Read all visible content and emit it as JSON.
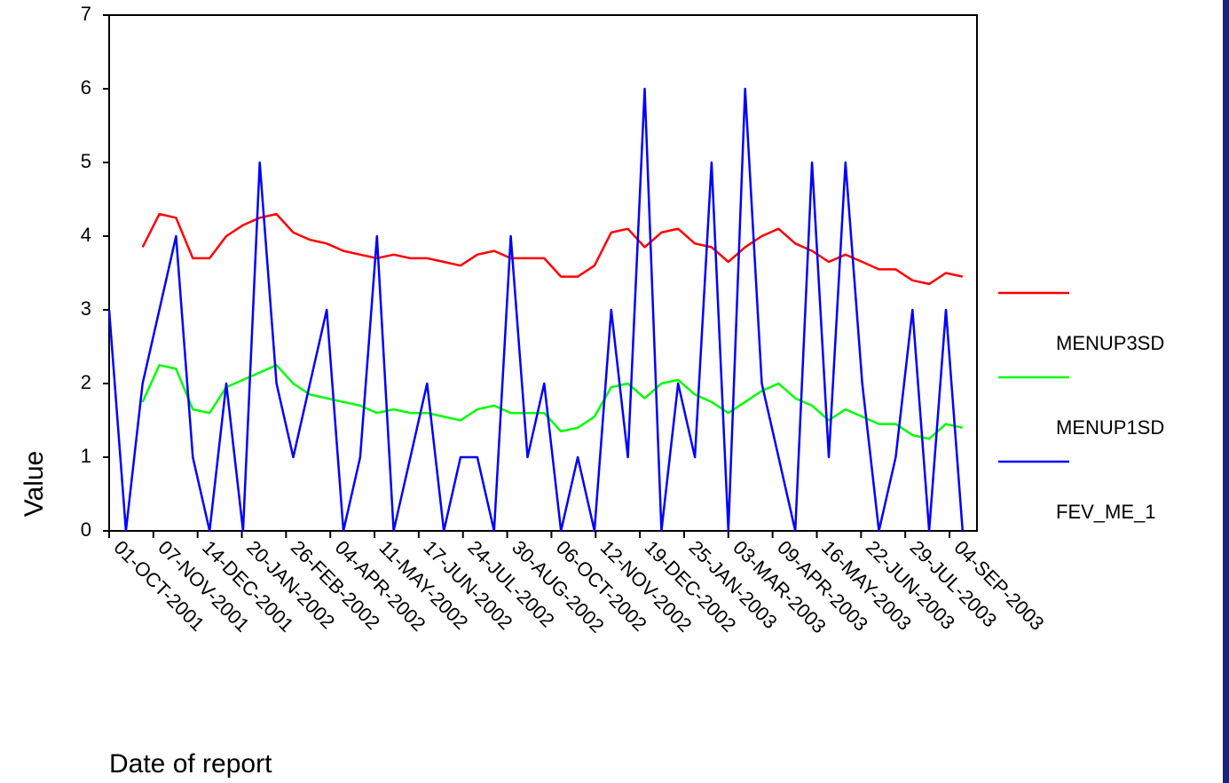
{
  "chart_data": {
    "type": "line",
    "x_label": "Date of report",
    "y_label": "Value",
    "x": [
      "01-OCT-2001",
      "15-OCT-2001",
      "29-OCT-2001",
      "12-NOV-2001",
      "26-NOV-2001",
      "10-DEC-2001",
      "24-DEC-2001",
      "07-JAN-2002",
      "21-JAN-2002",
      "04-FEB-2002",
      "18-FEB-2002",
      "04-MAR-2002",
      "18-MAR-2002",
      "01-APR-2002",
      "15-APR-2002",
      "29-APR-2002",
      "13-MAY-2002",
      "27-MAY-2002",
      "10-JUN-2002",
      "24-JUN-2002",
      "08-JUL-2002",
      "22-JUL-2002",
      "05-AUG-2002",
      "19-AUG-2002",
      "02-SEP-2002",
      "16-SEP-2002",
      "30-SEP-2002",
      "14-OCT-2002",
      "28-OCT-2002",
      "11-NOV-2002",
      "25-NOV-2002",
      "09-DEC-2002",
      "23-DEC-2002",
      "06-JAN-2003",
      "20-JAN-2003",
      "03-FEB-2003",
      "17-FEB-2003",
      "03-MAR-2003",
      "17-MAR-2003",
      "31-MAR-2003",
      "14-APR-2003",
      "28-APR-2003",
      "12-MAY-2003",
      "26-MAY-2003",
      "09-JUN-2003",
      "23-JUN-2003",
      "07-JUL-2003",
      "21-JUL-2003",
      "04-AUG-2003",
      "18-AUG-2003",
      "01-SEP-2003",
      "15-SEP-2003"
    ],
    "series": [
      {
        "name": "MENUP3SD",
        "color": "#ff0000",
        "values": [
          null,
          null,
          3.85,
          4.3,
          4.25,
          3.7,
          3.7,
          4.0,
          4.15,
          4.25,
          4.3,
          4.05,
          3.95,
          3.9,
          3.8,
          3.75,
          3.7,
          3.75,
          3.7,
          3.7,
          3.65,
          3.6,
          3.75,
          3.8,
          3.7,
          3.7,
          3.7,
          3.45,
          3.45,
          3.6,
          4.05,
          4.1,
          3.85,
          4.05,
          4.1,
          3.9,
          3.85,
          3.65,
          3.85,
          4.0,
          4.1,
          3.9,
          3.8,
          3.65,
          3.75,
          3.65,
          3.55,
          3.55,
          3.4,
          3.35,
          3.5,
          3.45
        ]
      },
      {
        "name": "MENUP1SD",
        "color": "#00ff00",
        "values": [
          null,
          null,
          1.75,
          2.25,
          2.2,
          1.65,
          1.6,
          1.95,
          2.05,
          2.15,
          2.25,
          2.0,
          1.85,
          1.8,
          1.75,
          1.7,
          1.6,
          1.65,
          1.6,
          1.6,
          1.55,
          1.5,
          1.65,
          1.7,
          1.6,
          1.6,
          1.6,
          1.35,
          1.4,
          1.55,
          1.95,
          2.0,
          1.8,
          2.0,
          2.05,
          1.85,
          1.75,
          1.6,
          1.75,
          1.9,
          2.0,
          1.8,
          1.7,
          1.5,
          1.65,
          1.55,
          1.45,
          1.45,
          1.3,
          1.25,
          1.45,
          1.4
        ]
      },
      {
        "name": "FEV_ME_1",
        "color": "#0000ff",
        "values": [
          3,
          0,
          2,
          3,
          4,
          1,
          0,
          2,
          0,
          5,
          2,
          1,
          2,
          3,
          0,
          1,
          4,
          0,
          1,
          2,
          0,
          1,
          1,
          0,
          4,
          1,
          2,
          0,
          1,
          0,
          3,
          1,
          6,
          0,
          2,
          1,
          5,
          0,
          6,
          2,
          1,
          0,
          5,
          1,
          5,
          2,
          0,
          1,
          3,
          0,
          3,
          0
        ]
      }
    ],
    "xlim": [
      "01-OCT-2001",
      "27-SEP-2003"
    ],
    "xticks": [
      "01-OCT-2001",
      "07-NOV-2001",
      "14-DEC-2001",
      "20-JAN-2002",
      "26-FEB-2002",
      "04-APR-2002",
      "11-MAY-2002",
      "17-JUN-2002",
      "24-JUL-2002",
      "30-AUG-2002",
      "06-OCT-2002",
      "12-NOV-2002",
      "19-DEC-2002",
      "25-JAN-2003",
      "03-MAR-2003",
      "09-APR-2003",
      "16-MAY-2003",
      "22-JUN-2003",
      "29-JUL-2003",
      "04-SEP-2003"
    ],
    "ylim": [
      0,
      7
    ],
    "yticks": [
      0,
      1,
      2,
      3,
      4,
      5,
      6,
      7
    ],
    "legend": "right"
  }
}
